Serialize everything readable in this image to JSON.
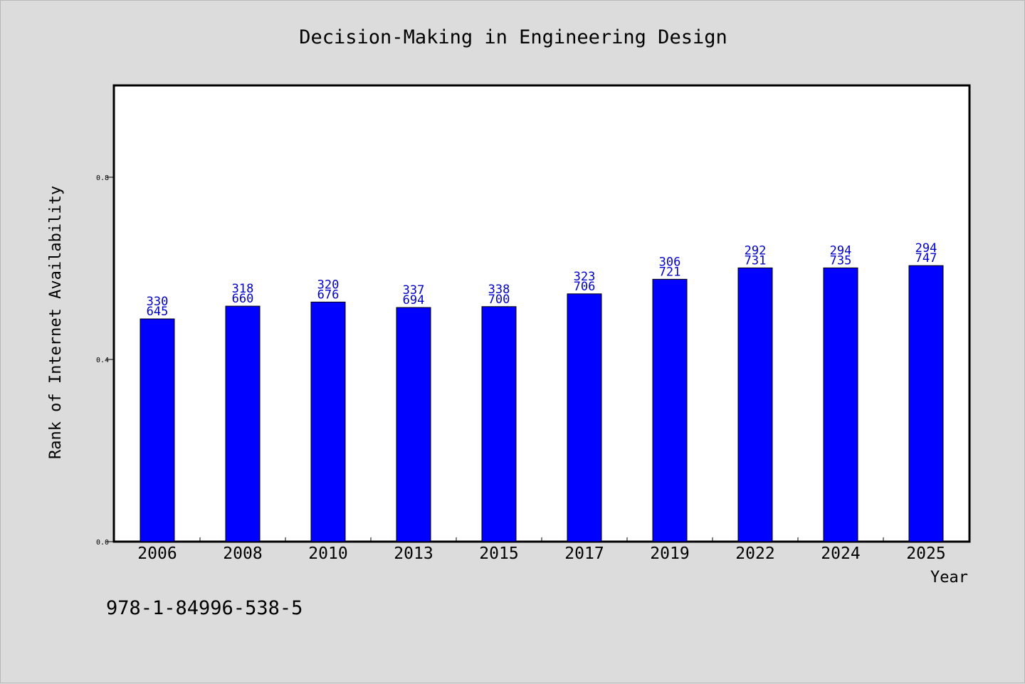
{
  "chart_data": {
    "type": "bar",
    "title": "Decision-Making in Engineering Design",
    "xlabel": "Year",
    "ylabel": "Rank of Internet Availability",
    "categories": [
      "2006",
      "2008",
      "2010",
      "2013",
      "2015",
      "2017",
      "2019",
      "2022",
      "2024",
      "2025"
    ],
    "values": [
      0.489,
      0.517,
      0.526,
      0.514,
      0.516,
      0.544,
      0.576,
      0.601,
      0.601,
      0.606
    ],
    "data_labels": [
      [
        "330",
        "645"
      ],
      [
        "318",
        "660"
      ],
      [
        "320",
        "676"
      ],
      [
        "337",
        "694"
      ],
      [
        "338",
        "700"
      ],
      [
        "323",
        "706"
      ],
      [
        "306",
        "721"
      ],
      [
        "292",
        "731"
      ],
      [
        "294",
        "735"
      ],
      [
        "294",
        "747"
      ]
    ],
    "yticks": [
      0.0,
      0.4,
      0.8
    ],
    "ytick_labels": [
      "0.0",
      "0.4",
      "0.8"
    ],
    "ylim": [
      0,
      1.0
    ],
    "grid": false,
    "bar_color": "#0000ff",
    "label_color": "#0000cc"
  },
  "footnote": "978-1-84996-538-5"
}
